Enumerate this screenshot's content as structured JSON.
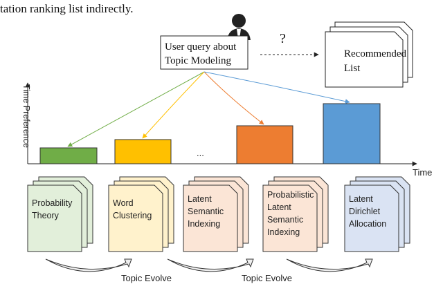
{
  "caption_fragment": "tation ranking list indirectly.",
  "query": {
    "lines": [
      "User query about",
      "Topic Modeling"
    ]
  },
  "question_mark": "?",
  "recommended": {
    "lines": [
      "Recommended",
      "List"
    ]
  },
  "axes": {
    "y_label": "Time Preference",
    "x_label": "Time"
  },
  "ellipsis": "...",
  "documents": [
    {
      "lines": [
        "Probability",
        "Theory"
      ]
    },
    {
      "lines": [
        "Word",
        "Clustering"
      ]
    },
    {
      "lines": [
        "Latent",
        "Semantic",
        "Indexing"
      ]
    },
    {
      "lines": [
        "Probabilistic",
        "Latent",
        "Semantic",
        "Indexing"
      ]
    },
    {
      "lines": [
        "Latent",
        "Dirichlet",
        "Allocation"
      ]
    }
  ],
  "evolve_labels": [
    "Topic Evolve",
    "Topic Evolve"
  ]
}
